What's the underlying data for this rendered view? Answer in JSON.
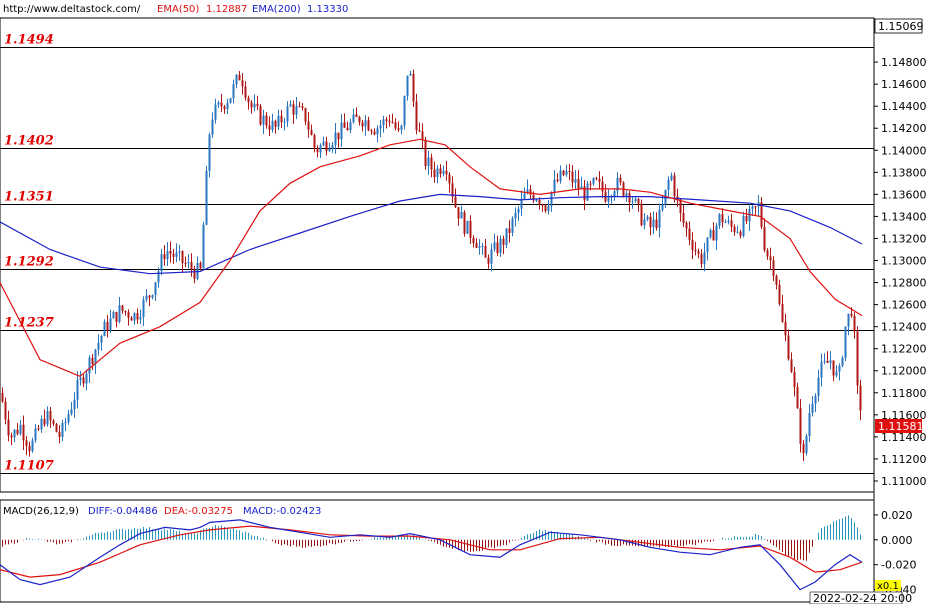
{
  "header": {
    "source": "http://www.deltastock.com/",
    "ema50_label": "EMA(50)",
    "ema50_value": "1.12887",
    "ema200_label": "EMA(200)",
    "ema200_value": "1.13330"
  },
  "macd_header": {
    "label": "MACD(26,12,9)",
    "diff": "DIFF:-0.04486",
    "dea": "DEA:-0.03275",
    "macd": "MACD:-0.02423"
  },
  "timestamp": "2022-02-24 20:00",
  "small_box": "x0.1",
  "top_price_box": "1.15069",
  "last_price_box": "1.11581",
  "colors": {
    "up_candle": "#2a76c0",
    "down_candle": "#b01818",
    "ema50": "#e01010",
    "ema200": "#1a22c8",
    "level_text": "#e00000",
    "macd_pos": "#2b93bf",
    "macd_neg": "#9b1515",
    "diff_line": "#1a22c8",
    "dea_line": "#e01010",
    "last_price_bg": "#e01010",
    "small_box_bg": "#ffff00"
  },
  "chart_data": [
    {
      "type": "candlestick",
      "title": "",
      "ylim": [
        1.109,
        1.152
      ],
      "price_axis_ticks": [
        "1.14800",
        "1.14600",
        "1.14400",
        "1.14200",
        "1.14000",
        "1.13800",
        "1.13600",
        "1.13400",
        "1.13200",
        "1.13000",
        "1.12800",
        "1.12600",
        "1.12400",
        "1.12200",
        "1.12000",
        "1.11800",
        "1.11600",
        "1.11400",
        "1.11200",
        "1.11000"
      ],
      "tick_values": [
        1.148,
        1.146,
        1.144,
        1.142,
        1.14,
        1.138,
        1.136,
        1.134,
        1.132,
        1.13,
        1.128,
        1.126,
        1.124,
        1.122,
        1.12,
        1.118,
        1.116,
        1.114,
        1.112,
        1.11
      ],
      "levels": [
        {
          "label": "1.1494",
          "value": 1.1494
        },
        {
          "label": "1.1402",
          "value": 1.1402
        },
        {
          "label": "1.1351",
          "value": 1.1351
        },
        {
          "label": "1.1292",
          "value": 1.1292
        },
        {
          "label": "1.1237",
          "value": 1.1237
        },
        {
          "label": "1.1107",
          "value": 1.1107
        }
      ],
      "anchors": [
        [
          0,
          1.118
        ],
        [
          10,
          1.114
        ],
        [
          20,
          1.115
        ],
        [
          30,
          1.113
        ],
        [
          45,
          1.116
        ],
        [
          60,
          1.114
        ],
        [
          75,
          1.118
        ],
        [
          90,
          1.121
        ],
        [
          105,
          1.124
        ],
        [
          120,
          1.1255
        ],
        [
          135,
          1.125
        ],
        [
          150,
          1.127
        ],
        [
          165,
          1.131
        ],
        [
          180,
          1.13
        ],
        [
          195,
          1.129
        ],
        [
          200,
          1.129
        ],
        [
          205,
          1.136
        ],
        [
          210,
          1.143
        ],
        [
          220,
          1.144
        ],
        [
          230,
          1.145
        ],
        [
          240,
          1.147
        ],
        [
          250,
          1.144
        ],
        [
          260,
          1.143
        ],
        [
          275,
          1.142
        ],
        [
          290,
          1.144
        ],
        [
          305,
          1.143
        ],
        [
          315,
          1.14
        ],
        [
          330,
          1.141
        ],
        [
          345,
          1.142
        ],
        [
          360,
          1.143
        ],
        [
          375,
          1.142
        ],
        [
          390,
          1.143
        ],
        [
          400,
          1.141
        ],
        [
          408,
          1.148
        ],
        [
          415,
          1.143
        ],
        [
          425,
          1.139
        ],
        [
          435,
          1.138
        ],
        [
          445,
          1.139
        ],
        [
          455,
          1.135
        ],
        [
          465,
          1.133
        ],
        [
          475,
          1.132
        ],
        [
          485,
          1.13
        ],
        [
          495,
          1.131
        ],
        [
          505,
          1.132
        ],
        [
          515,
          1.134
        ],
        [
          525,
          1.136
        ],
        [
          535,
          1.136
        ],
        [
          545,
          1.135
        ],
        [
          555,
          1.137
        ],
        [
          565,
          1.138
        ],
        [
          575,
          1.137
        ],
        [
          585,
          1.136
        ],
        [
          595,
          1.137
        ],
        [
          605,
          1.136
        ],
        [
          615,
          1.137
        ],
        [
          630,
          1.136
        ],
        [
          640,
          1.134
        ],
        [
          650,
          1.133
        ],
        [
          660,
          1.134
        ],
        [
          670,
          1.138
        ],
        [
          680,
          1.134
        ],
        [
          690,
          1.132
        ],
        [
          700,
          1.13
        ],
        [
          710,
          1.132
        ],
        [
          720,
          1.134
        ],
        [
          730,
          1.133
        ],
        [
          740,
          1.133
        ],
        [
          750,
          1.134
        ],
        [
          758,
          1.135
        ],
        [
          765,
          1.131
        ],
        [
          775,
          1.129
        ],
        [
          780,
          1.125
        ],
        [
          790,
          1.121
        ],
        [
          797,
          1.116
        ],
        [
          803,
          1.112
        ],
        [
          810,
          1.117
        ],
        [
          820,
          1.12
        ],
        [
          830,
          1.121
        ],
        [
          838,
          1.119
        ],
        [
          845,
          1.124
        ],
        [
          852,
          1.126
        ],
        [
          857,
          1.118
        ],
        [
          862,
          1.116
        ]
      ],
      "ema50_points": [
        [
          0,
          1.128
        ],
        [
          40,
          1.121
        ],
        [
          80,
          1.1195
        ],
        [
          120,
          1.1225
        ],
        [
          160,
          1.124
        ],
        [
          200,
          1.1262
        ],
        [
          230,
          1.13
        ],
        [
          260,
          1.1345
        ],
        [
          290,
          1.137
        ],
        [
          320,
          1.1385
        ],
        [
          360,
          1.1395
        ],
        [
          390,
          1.1405
        ],
        [
          420,
          1.141
        ],
        [
          445,
          1.1405
        ],
        [
          470,
          1.1385
        ],
        [
          500,
          1.1365
        ],
        [
          540,
          1.136
        ],
        [
          580,
          1.1365
        ],
        [
          620,
          1.1365
        ],
        [
          650,
          1.1362
        ],
        [
          690,
          1.1352
        ],
        [
          730,
          1.1345
        ],
        [
          760,
          1.134
        ],
        [
          790,
          1.132
        ],
        [
          810,
          1.129
        ],
        [
          835,
          1.1265
        ],
        [
          862,
          1.125
        ]
      ],
      "ema200_points": [
        [
          0,
          1.1335
        ],
        [
          50,
          1.131
        ],
        [
          100,
          1.1294
        ],
        [
          150,
          1.1288
        ],
        [
          200,
          1.129
        ],
        [
          250,
          1.131
        ],
        [
          300,
          1.1325
        ],
        [
          350,
          1.134
        ],
        [
          400,
          1.1354
        ],
        [
          440,
          1.136
        ],
        [
          480,
          1.1358
        ],
        [
          520,
          1.1355
        ],
        [
          560,
          1.1357
        ],
        [
          600,
          1.1358
        ],
        [
          650,
          1.1358
        ],
        [
          700,
          1.1355
        ],
        [
          750,
          1.1352
        ],
        [
          790,
          1.1345
        ],
        [
          830,
          1.133
        ],
        [
          862,
          1.1315
        ]
      ]
    },
    {
      "type": "macd",
      "title": "",
      "ylim": [
        -0.05,
        0.032
      ],
      "axis_ticks": [
        "0.020",
        "0.000",
        "-0.020",
        "-0.040"
      ],
      "tick_values": [
        0.02,
        0.0,
        -0.02,
        -0.04
      ],
      "diff_points": [
        [
          0,
          -0.02
        ],
        [
          20,
          -0.032
        ],
        [
          40,
          -0.036
        ],
        [
          70,
          -0.03
        ],
        [
          100,
          -0.014
        ],
        [
          120,
          -0.004
        ],
        [
          140,
          0.005
        ],
        [
          165,
          0.01
        ],
        [
          190,
          0.008
        ],
        [
          200,
          0.01
        ],
        [
          210,
          0.014
        ],
        [
          240,
          0.016
        ],
        [
          270,
          0.01
        ],
        [
          300,
          0.006
        ],
        [
          330,
          0.002
        ],
        [
          360,
          0.004
        ],
        [
          390,
          0.002
        ],
        [
          410,
          0.005
        ],
        [
          440,
          0.0
        ],
        [
          470,
          -0.012
        ],
        [
          500,
          -0.014
        ],
        [
          520,
          -0.004
        ],
        [
          550,
          0.006
        ],
        [
          580,
          0.004
        ],
        [
          620,
          0.0
        ],
        [
          650,
          -0.006
        ],
        [
          680,
          -0.01
        ],
        [
          710,
          -0.012
        ],
        [
          740,
          -0.006
        ],
        [
          760,
          -0.004
        ],
        [
          780,
          -0.02
        ],
        [
          800,
          -0.04
        ],
        [
          815,
          -0.034
        ],
        [
          835,
          -0.02
        ],
        [
          850,
          -0.012
        ],
        [
          862,
          -0.018
        ]
      ],
      "dea_points": [
        [
          0,
          -0.024
        ],
        [
          30,
          -0.03
        ],
        [
          60,
          -0.028
        ],
        [
          100,
          -0.018
        ],
        [
          140,
          -0.004
        ],
        [
          180,
          0.004
        ],
        [
          210,
          0.008
        ],
        [
          250,
          0.011
        ],
        [
          290,
          0.008
        ],
        [
          330,
          0.004
        ],
        [
          370,
          0.003
        ],
        [
          410,
          0.003
        ],
        [
          450,
          0.0
        ],
        [
          490,
          -0.008
        ],
        [
          520,
          -0.008
        ],
        [
          560,
          0.001
        ],
        [
          600,
          0.002
        ],
        [
          640,
          -0.002
        ],
        [
          680,
          -0.006
        ],
        [
          720,
          -0.008
        ],
        [
          760,
          -0.005
        ],
        [
          790,
          -0.014
        ],
        [
          815,
          -0.026
        ],
        [
          840,
          -0.024
        ],
        [
          862,
          -0.018
        ]
      ],
      "hist_anchors": [
        [
          0,
          -0.006
        ],
        [
          30,
          0.002
        ],
        [
          60,
          -0.004
        ],
        [
          100,
          0.006
        ],
        [
          140,
          0.01
        ],
        [
          170,
          0.008
        ],
        [
          190,
          0.004
        ],
        [
          215,
          0.012
        ],
        [
          245,
          0.006
        ],
        [
          280,
          -0.004
        ],
        [
          310,
          -0.006
        ],
        [
          340,
          -0.002
        ],
        [
          380,
          0.002
        ],
        [
          410,
          0.004
        ],
        [
          440,
          -0.004
        ],
        [
          470,
          -0.01
        ],
        [
          505,
          -0.004
        ],
        [
          540,
          0.008
        ],
        [
          570,
          0.004
        ],
        [
          610,
          -0.004
        ],
        [
          650,
          -0.006
        ],
        [
          690,
          -0.004
        ],
        [
          730,
          0.002
        ],
        [
          760,
          0.004
        ],
        [
          785,
          -0.012
        ],
        [
          805,
          -0.018
        ],
        [
          820,
          0.01
        ],
        [
          840,
          0.016
        ],
        [
          850,
          0.02
        ],
        [
          862,
          0.002
        ]
      ]
    }
  ]
}
